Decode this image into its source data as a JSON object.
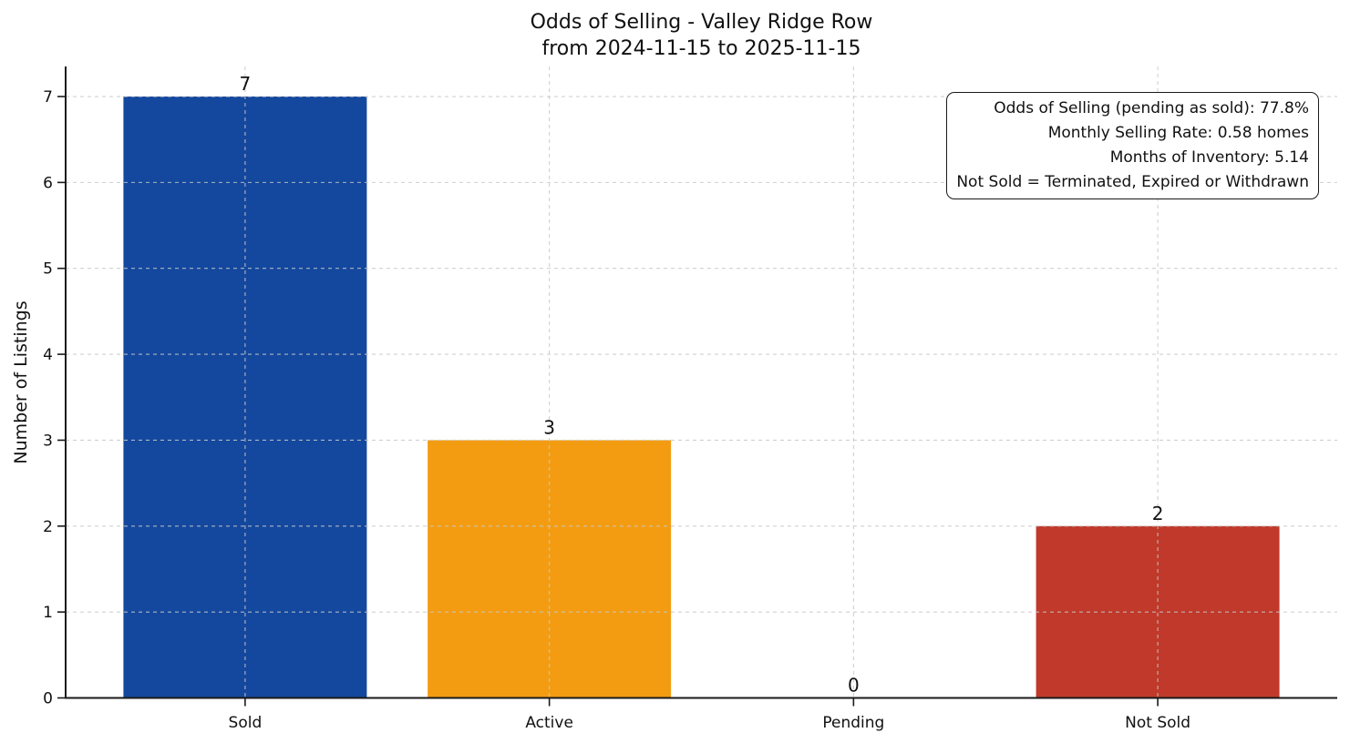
{
  "figure": {
    "title": "Odds of Selling - Valley Ridge Row",
    "subtitle": "from 2024-11-15 to 2025-11-15"
  },
  "annotation": {
    "lines": [
      "Odds of Selling (pending as sold): 77.8%",
      "Monthly Selling Rate: 0.58 homes",
      "Months of Inventory: 5.14",
      "Not Sold = Terminated, Expired or Withdrawn"
    ]
  },
  "chart_data": {
    "type": "bar",
    "title": "Odds of Selling - Valley Ridge Row\nfrom 2024-11-15 to 2025-11-15",
    "categories": [
      "Sold",
      "Active",
      "Pending",
      "Not Sold"
    ],
    "values": [
      7,
      3,
      0,
      2
    ],
    "value_labels": [
      "7",
      "3",
      "0",
      "2"
    ],
    "bar_colors": [
      "#14489e",
      "#f39c12",
      null,
      "#c0392b"
    ],
    "xlabel": "",
    "ylabel": "Number of Listings",
    "ylim": [
      0,
      7.35
    ],
    "yticks": [
      0,
      1,
      2,
      3,
      4,
      5,
      6,
      7
    ],
    "grid": true,
    "grid_style": "dashed",
    "legend": "none",
    "text_color": "#111111",
    "grid_color": "#c8c8c8",
    "spine_color": "#1a1a1a"
  }
}
